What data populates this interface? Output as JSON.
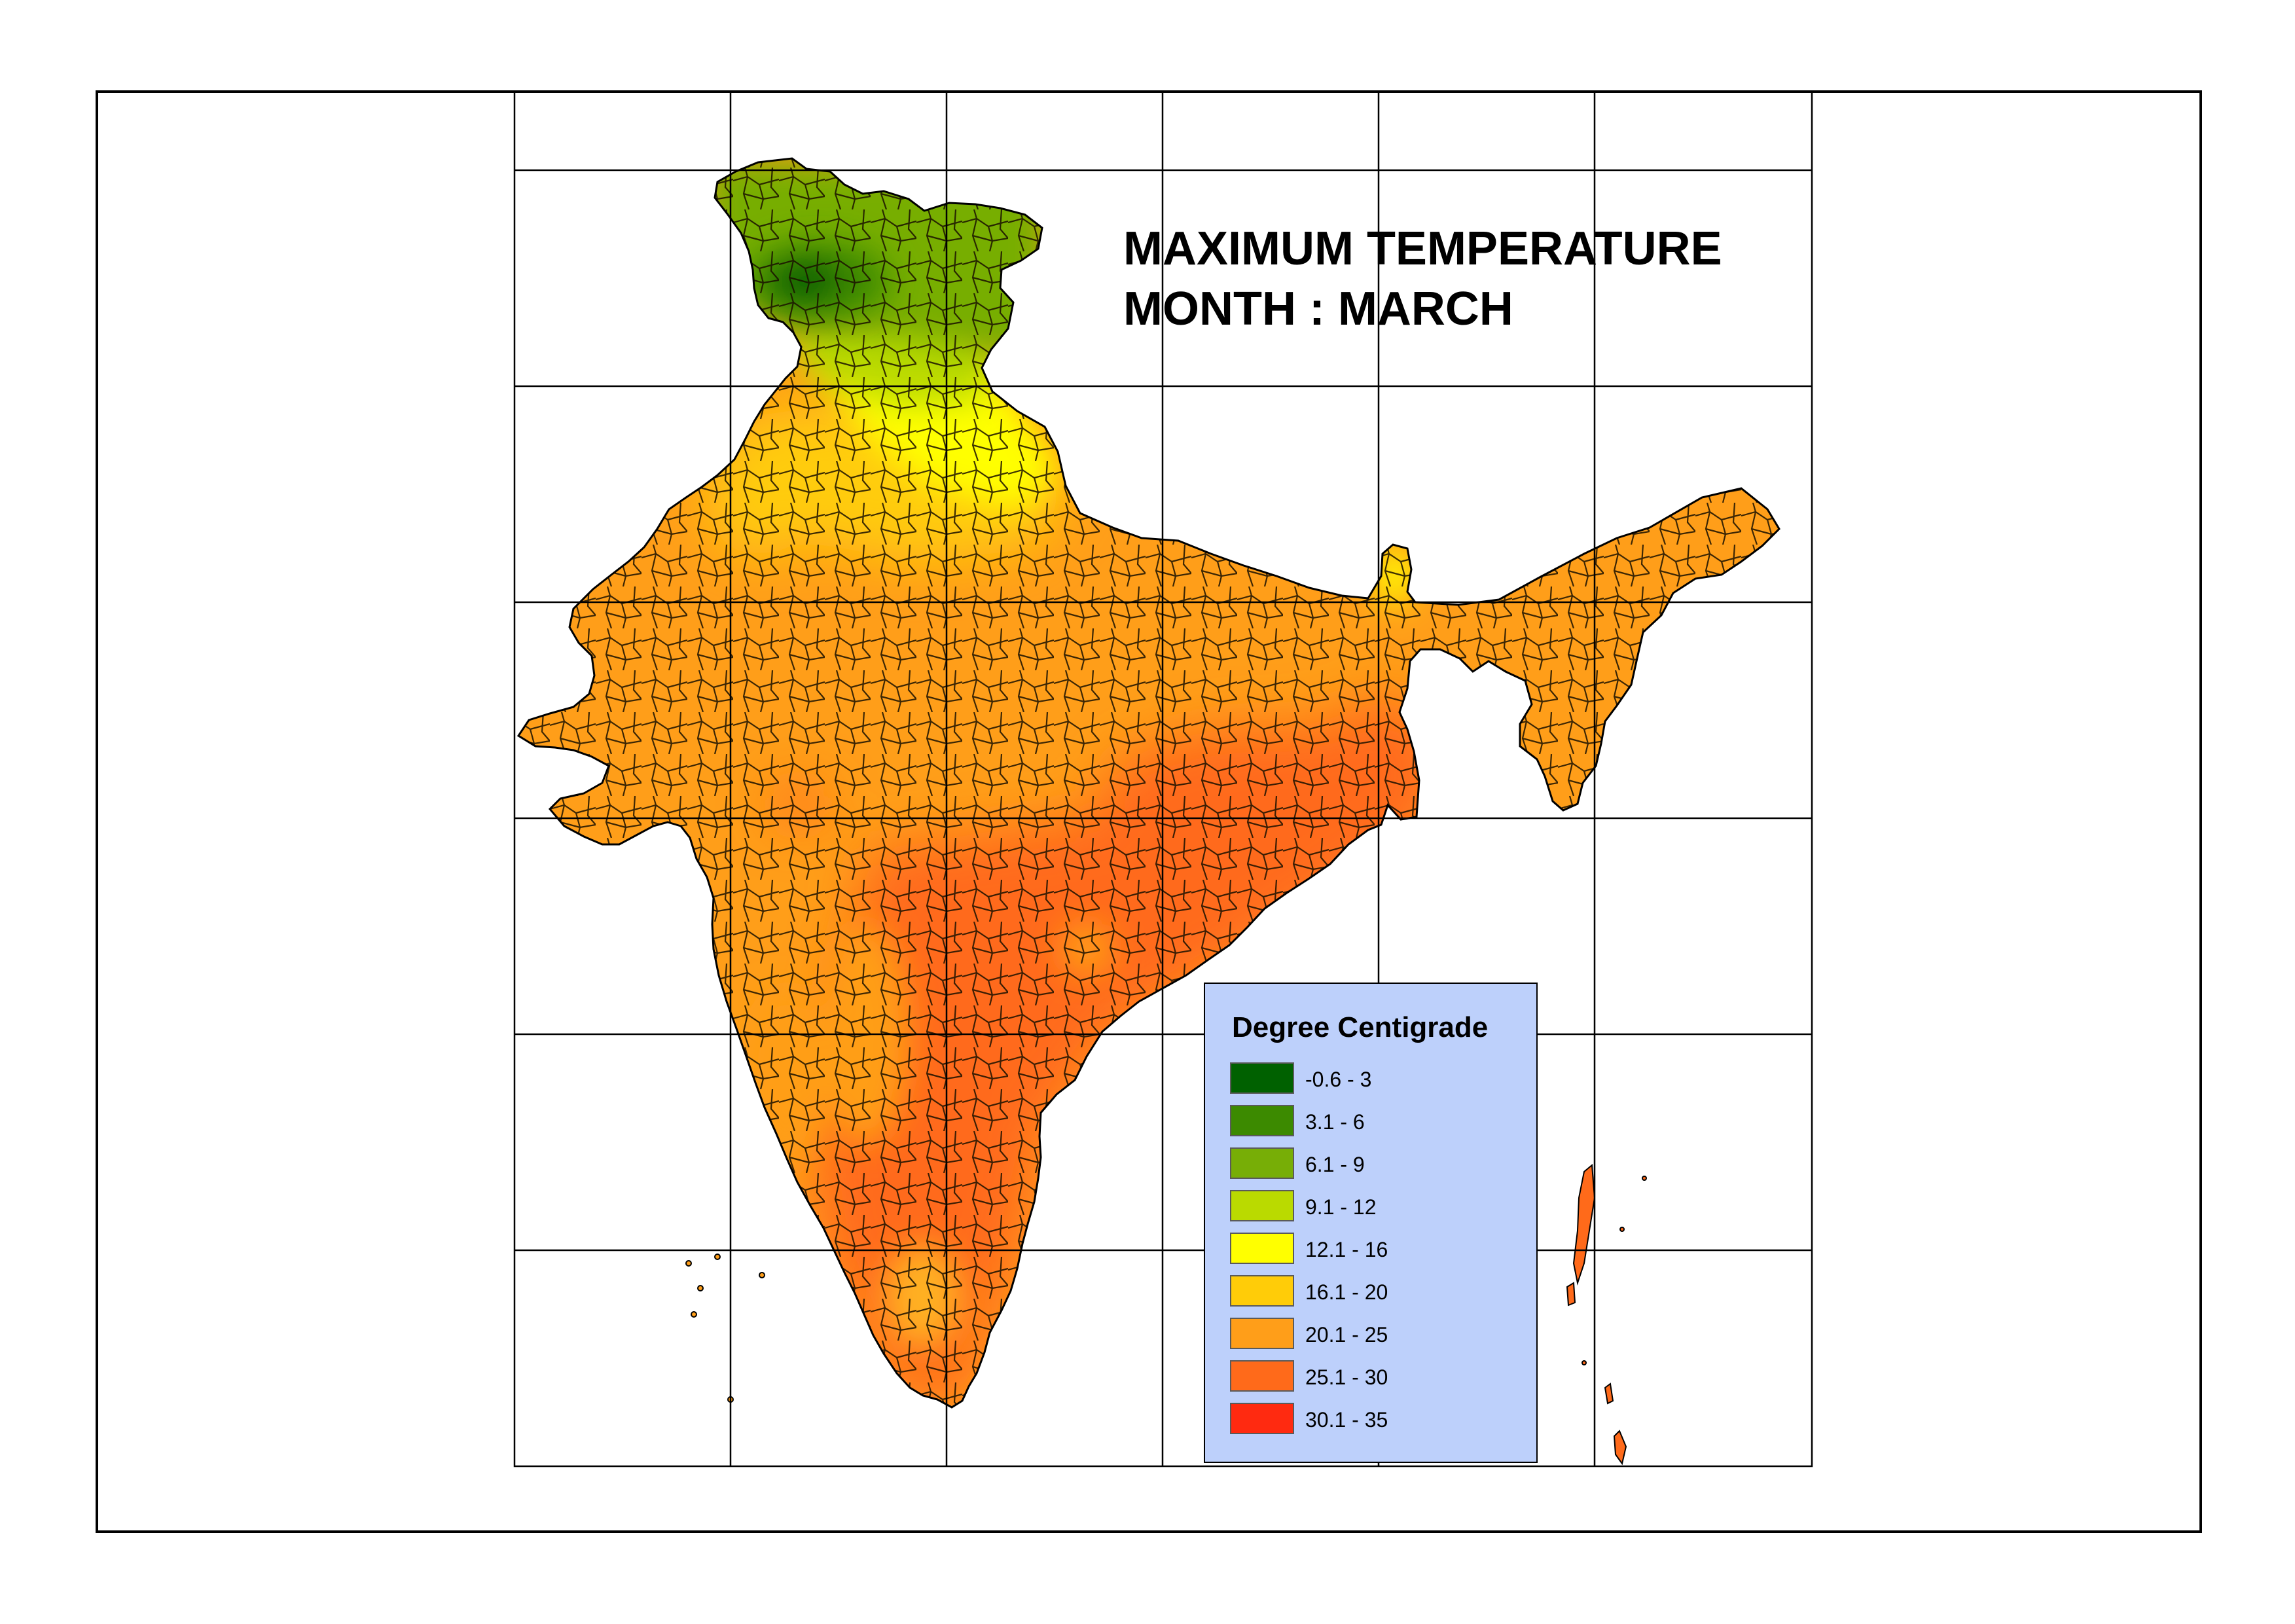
{
  "map": {
    "title_line1": "MAXIMUM TEMPERATURE",
    "title_line2": "MONTH : MARCH",
    "legend": {
      "title": "Degree Centigrade",
      "background": "#bdd0fb",
      "classes": [
        {
          "label": "-0.6 - 3",
          "color": "#006100"
        },
        {
          "label": "3.1 - 6",
          "color": "#3c8a00"
        },
        {
          "label": "6.1 - 9",
          "color": "#77ae06"
        },
        {
          "label": "9.1 - 12",
          "color": "#bada00"
        },
        {
          "label": "12.1 - 16",
          "color": "#ffff00"
        },
        {
          "label": "16.1 - 20",
          "color": "#ffcc08"
        },
        {
          "label": "20.1 - 25",
          "color": "#ff9e19"
        },
        {
          "label": "25.1 - 30",
          "color": "#ff6a1a"
        },
        {
          "label": "30.1 - 35",
          "color": "#ff2a10"
        }
      ]
    }
  }
}
